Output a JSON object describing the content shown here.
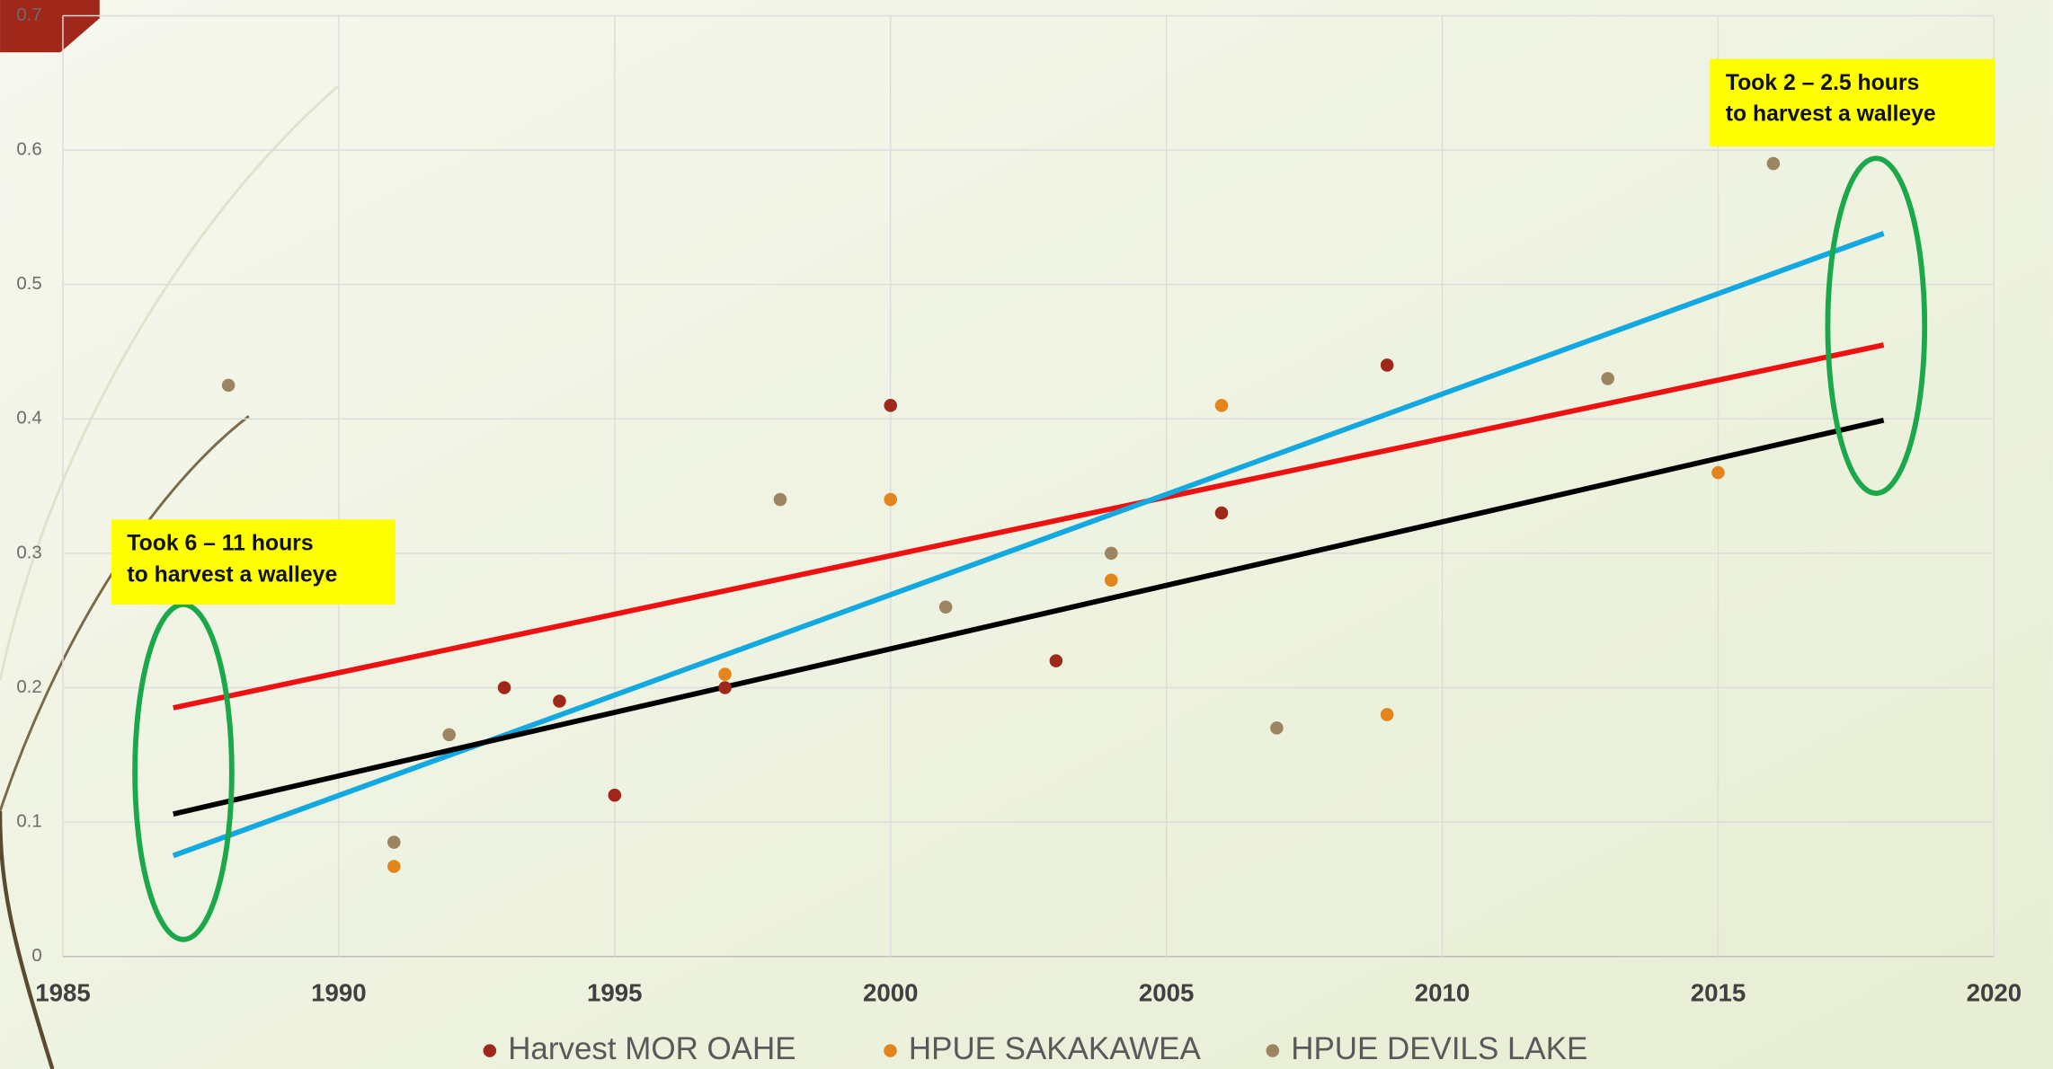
{
  "chart_data": {
    "type": "scatter",
    "xlim": [
      1985,
      2020
    ],
    "xticks": [
      1985,
      1990,
      1995,
      2000,
      2005,
      2010,
      2015,
      2020
    ],
    "ylim": [
      0,
      0.7
    ],
    "yticks": [
      0,
      0.1,
      0.2,
      0.3,
      0.4,
      0.5,
      0.6,
      0.7
    ],
    "grid": true,
    "legend": "bottom",
    "series": [
      {
        "name": "Harvest MOR OAHE",
        "color": "#a0281a",
        "x": [
          1993,
          1994,
          1995,
          1997,
          2000,
          2003,
          2006,
          2009
        ],
        "values": [
          0.2,
          0.19,
          0.12,
          0.2,
          0.41,
          0.22,
          0.33,
          0.44
        ]
      },
      {
        "name": "HPUE SAKAKAWEA",
        "color": "#e3841c",
        "x": [
          1991,
          1997,
          2000,
          2004,
          2006,
          2009,
          2015
        ],
        "values": [
          0.067,
          0.21,
          0.34,
          0.28,
          0.41,
          0.18,
          0.36
        ]
      },
      {
        "name": "HPUE DEVILS LAKE",
        "color": "#9c8560",
        "x": [
          1988,
          1991,
          1992,
          1998,
          2001,
          2004,
          2007,
          2013,
          2016
        ],
        "values": [
          0.425,
          0.085,
          0.165,
          0.34,
          0.26,
          0.3,
          0.17,
          0.43,
          0.59
        ]
      }
    ],
    "trendlines": [
      {
        "color": "#ee1111",
        "x": [
          1987,
          2018
        ],
        "values": [
          0.185,
          0.455
        ]
      },
      {
        "color": "#12a8e0",
        "x": [
          1987,
          2018
        ],
        "values": [
          0.075,
          0.538
        ]
      },
      {
        "color": "#000000",
        "x": [
          1987,
          2018
        ],
        "values": [
          0.106,
          0.399
        ]
      }
    ],
    "annotations": [
      {
        "lines": [
          "Took 6 – 11 hours",
          "to harvest a walleye"
        ]
      },
      {
        "lines": [
          "Took 2 – 2.5 hours",
          "to harvest a walleye"
        ]
      }
    ]
  }
}
